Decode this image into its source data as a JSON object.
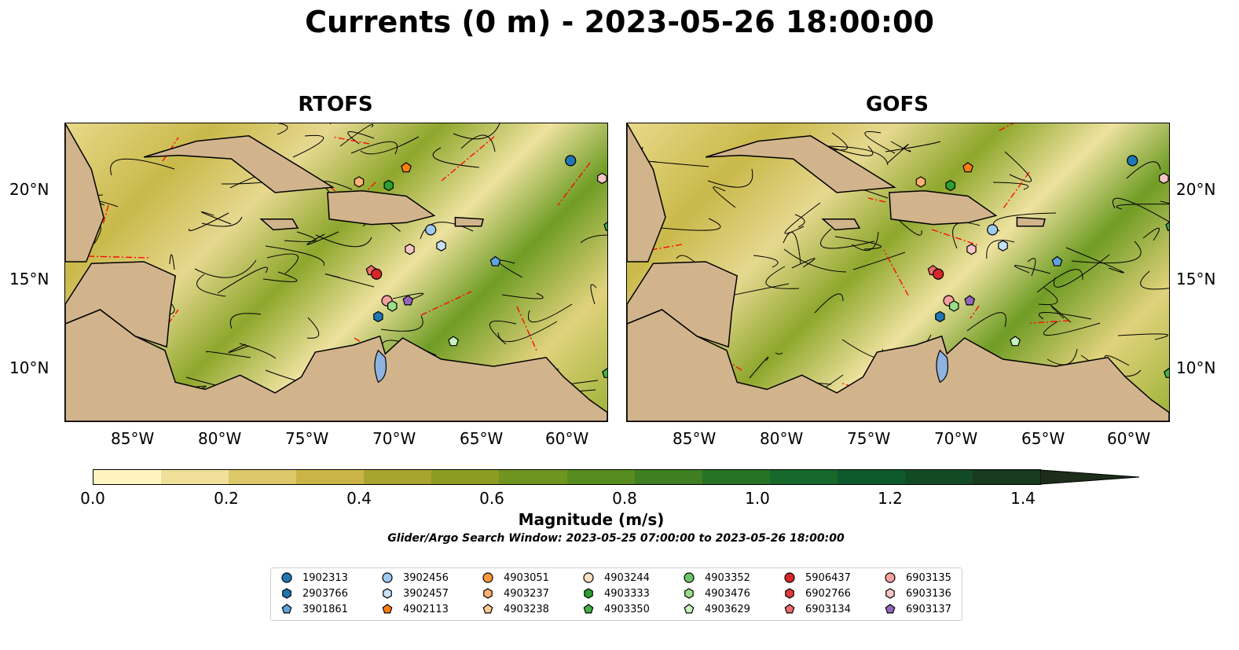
{
  "title": "Currents (0 m) - 2023-05-26 18:00:00",
  "panels": [
    {
      "title": "RTOFS"
    },
    {
      "title": "GOFS"
    }
  ],
  "lon_ticks": [
    "85°W",
    "80°W",
    "75°W",
    "70°W",
    "65°W",
    "60°W"
  ],
  "lat_ticks": [
    "20°N",
    "15°N",
    "10°N"
  ],
  "map_extent": {
    "lon": [
      -89.5,
      -58.5
    ],
    "lat": [
      7.0,
      23.8
    ]
  },
  "colorbar": {
    "label": "Magnitude (m/s)",
    "ticks": [
      "0.0",
      "0.2",
      "0.4",
      "0.6",
      "0.8",
      "1.0",
      "1.2",
      "1.4"
    ],
    "range": [
      0.0,
      1.5
    ],
    "extend": "max",
    "colors": [
      "#fff5c2",
      "#f0e09a",
      "#ddc86a",
      "#c9b445",
      "#a9a42e",
      "#8c9c22",
      "#6f9420",
      "#578c1f",
      "#3f7f22",
      "#267326",
      "#16682b",
      "#0f5a2c",
      "#134a26",
      "#183a1f",
      "#1c2e19"
    ]
  },
  "search_window": "Glider/Argo Search Window: 2023-05-25 07:00:00 to 2023-05-26 18:00:00",
  "legend": [
    {
      "id": "1902313",
      "shape": "circle",
      "color": "#1f77b4"
    },
    {
      "id": "2903766",
      "shape": "hexagon",
      "color": "#1f77b4"
    },
    {
      "id": "3901861",
      "shape": "pentagon",
      "color": "#5fa2dd"
    },
    {
      "id": "3902456",
      "shape": "circle",
      "color": "#9ec9ee"
    },
    {
      "id": "3902457",
      "shape": "hexagon",
      "color": "#c6e2f7"
    },
    {
      "id": "4902113",
      "shape": "pentagon",
      "color": "#ff7f0e"
    },
    {
      "id": "4903051",
      "shape": "circle",
      "color": "#ff9a3c"
    },
    {
      "id": "4903237",
      "shape": "hexagon",
      "color": "#ffb173"
    },
    {
      "id": "4903238",
      "shape": "pentagon",
      "color": "#ffc896"
    },
    {
      "id": "4903244",
      "shape": "circle",
      "color": "#ffe0c2"
    },
    {
      "id": "4903333",
      "shape": "hexagon",
      "color": "#2ca02c"
    },
    {
      "id": "4903350",
      "shape": "pentagon",
      "color": "#45b045"
    },
    {
      "id": "4903352",
      "shape": "circle",
      "color": "#6cc46c"
    },
    {
      "id": "4903476",
      "shape": "hexagon",
      "color": "#98df8a"
    },
    {
      "id": "4903629",
      "shape": "pentagon",
      "color": "#c9f0c0"
    },
    {
      "id": "5906437",
      "shape": "circle",
      "color": "#d62728"
    },
    {
      "id": "6902766",
      "shape": "hexagon",
      "color": "#e03c3c"
    },
    {
      "id": "6903134",
      "shape": "pentagon",
      "color": "#ee6b6b"
    },
    {
      "id": "6903135",
      "shape": "circle",
      "color": "#f4a0a0"
    },
    {
      "id": "6903136",
      "shape": "hexagon",
      "color": "#f8c6c6"
    },
    {
      "id": "6903137",
      "shape": "pentagon",
      "color": "#9467bd"
    }
  ],
  "floats_rtofs": [
    {
      "id": "1902313",
      "lon": -60.6,
      "lat": 21.7
    },
    {
      "id": "6903136",
      "lon": -58.8,
      "lat": 20.7
    },
    {
      "id": "4903350",
      "lon": -58.4,
      "lat": 18.0
    },
    {
      "id": "4902113",
      "lon": -70.0,
      "lat": 21.3
    },
    {
      "id": "4903237",
      "lon": -72.7,
      "lat": 20.5
    },
    {
      "id": "4903333",
      "lon": -71.0,
      "lat": 20.3
    },
    {
      "id": "3902456",
      "lon": -68.6,
      "lat": 17.8
    },
    {
      "id": "3902457",
      "lon": -68.0,
      "lat": 16.9
    },
    {
      "id": "6903136",
      "lon": -69.8,
      "lat": 16.7
    },
    {
      "id": "3901861",
      "lon": -64.9,
      "lat": 16.0
    },
    {
      "id": "6903134",
      "lon": -72.0,
      "lat": 15.5
    },
    {
      "id": "5906437",
      "lon": -71.7,
      "lat": 15.3
    },
    {
      "id": "6903135",
      "lon": -71.1,
      "lat": 13.8
    },
    {
      "id": "4903476",
      "lon": -70.8,
      "lat": 13.5
    },
    {
      "id": "6903137",
      "lon": -69.9,
      "lat": 13.8
    },
    {
      "id": "2903766",
      "lon": -71.6,
      "lat": 12.9
    },
    {
      "id": "4903629",
      "lon": -67.3,
      "lat": 11.5
    },
    {
      "id": "4903350",
      "lon": -58.5,
      "lat": 9.7
    }
  ]
}
